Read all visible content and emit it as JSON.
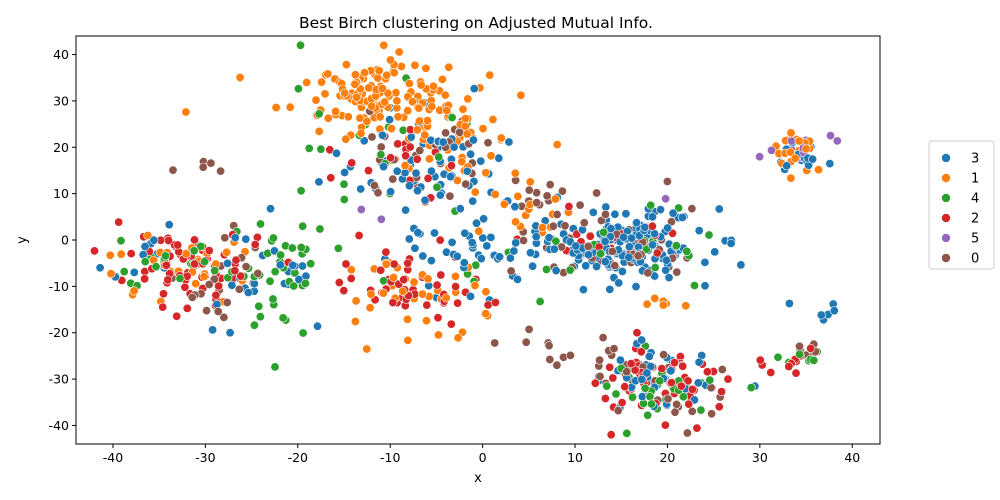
{
  "chart_data": {
    "type": "scatter",
    "title": "Best Birch clustering on Adjusted Mutual Info.",
    "xlabel": "x",
    "ylabel": "y",
    "xlim": [
      -44,
      43
    ],
    "ylim": [
      -44,
      44
    ],
    "xticks": [
      "-40",
      "-30",
      "-20",
      "-10",
      "0",
      "10",
      "20",
      "30",
      "40"
    ],
    "yticks": [
      "-40",
      "-30",
      "-20",
      "-10",
      "0",
      "10",
      "20",
      "30",
      "40"
    ],
    "grid": false,
    "legend_position": "center-right",
    "legend_order": [
      "3",
      "1",
      "4",
      "2",
      "5",
      "0"
    ],
    "series": [
      {
        "name": "3",
        "color": "#1f77b4",
        "clusters": [
          {
            "cx": 15,
            "cy": -1,
            "sx": 4.5,
            "sy": 4,
            "n": 160
          },
          {
            "cx": -6,
            "cy": 16,
            "sx": 5,
            "sy": 6,
            "n": 70
          },
          {
            "cx": -2,
            "cy": -4,
            "sx": 4,
            "sy": 5,
            "n": 40
          },
          {
            "cx": 18,
            "cy": -30,
            "sx": 3.5,
            "sy": 4,
            "n": 40
          },
          {
            "cx": -25,
            "cy": -8,
            "sx": 4,
            "sy": 4,
            "n": 25
          },
          {
            "cx": 34,
            "cy": 18,
            "sx": 1.5,
            "sy": 2,
            "n": 15
          },
          {
            "cx": 36,
            "cy": -15,
            "sx": 1.5,
            "sy": 1,
            "n": 6
          },
          {
            "cx": -35,
            "cy": -4,
            "sx": 3,
            "sy": 4,
            "n": 10
          }
        ]
      },
      {
        "name": "1",
        "color": "#ff7f0e",
        "clusters": [
          {
            "cx": -12,
            "cy": 31,
            "sx": 5,
            "sy": 4,
            "n": 140
          },
          {
            "cx": -3,
            "cy": 22,
            "sx": 4,
            "sy": 5,
            "n": 40
          },
          {
            "cx": -8,
            "cy": -10,
            "sx": 4,
            "sy": 4,
            "n": 40
          },
          {
            "cx": 34,
            "cy": 19,
            "sx": 2,
            "sy": 2,
            "n": 25
          },
          {
            "cx": -33,
            "cy": -6,
            "sx": 4,
            "sy": 4,
            "n": 30
          },
          {
            "cx": 4,
            "cy": 8,
            "sx": 3,
            "sy": 4,
            "n": 20
          },
          {
            "cx": 20,
            "cy": -14,
            "sx": 1.5,
            "sy": 1,
            "n": 6
          }
        ]
      },
      {
        "name": "4",
        "color": "#2ca02c",
        "clusters": [
          {
            "cx": -22,
            "cy": -8,
            "sx": 3,
            "sy": 6,
            "n": 40
          },
          {
            "cx": 20,
            "cy": -32,
            "sx": 4,
            "sy": 4,
            "n": 30
          },
          {
            "cx": -12,
            "cy": 22,
            "sx": 5,
            "sy": 6,
            "n": 20
          },
          {
            "cx": -34,
            "cy": -5,
            "sx": 3,
            "sy": 3,
            "n": 20
          },
          {
            "cx": 18,
            "cy": -3,
            "sx": 3,
            "sy": 4,
            "n": 15
          },
          {
            "cx": 35,
            "cy": -25,
            "sx": 1.5,
            "sy": 1.5,
            "n": 8
          },
          {
            "cx": 5,
            "cy": -5,
            "sx": 5,
            "sy": 5,
            "n": 12
          }
        ]
      },
      {
        "name": "2",
        "color": "#d62728",
        "clusters": [
          {
            "cx": -31,
            "cy": -6,
            "sx": 4,
            "sy": 4,
            "n": 70
          },
          {
            "cx": 19,
            "cy": -31,
            "sx": 4,
            "sy": 4,
            "n": 60
          },
          {
            "cx": -9,
            "cy": -8,
            "sx": 4,
            "sy": 4,
            "n": 30
          },
          {
            "cx": -7,
            "cy": 15,
            "sx": 4,
            "sy": 5,
            "n": 20
          },
          {
            "cx": 14,
            "cy": 0,
            "sx": 4,
            "sy": 3,
            "n": 20
          },
          {
            "cx": 34,
            "cy": -25,
            "sx": 1.5,
            "sy": 1.5,
            "n": 10
          },
          {
            "cx": -4,
            "cy": -13,
            "sx": 3,
            "sy": 2,
            "n": 15
          }
        ]
      },
      {
        "name": "5",
        "color": "#9467bd",
        "clusters": [
          {
            "cx": 34,
            "cy": 20,
            "sx": 2,
            "sy": 1.5,
            "n": 10
          },
          {
            "cx": -11,
            "cy": 5,
            "sx": 1,
            "sy": 1,
            "n": 2
          },
          {
            "cx": 20,
            "cy": 10,
            "sx": 0.5,
            "sy": 0.5,
            "n": 1
          }
        ]
      },
      {
        "name": "0",
        "color": "#8c564b",
        "clusters": [
          {
            "cx": 14,
            "cy": -1,
            "sx": 4.5,
            "sy": 4,
            "n": 50
          },
          {
            "cx": -7,
            "cy": 18,
            "sx": 4,
            "sy": 5,
            "n": 30
          },
          {
            "cx": 20,
            "cy": -31,
            "sx": 4,
            "sy": 4,
            "n": 30
          },
          {
            "cx": -29,
            "cy": -8,
            "sx": 3,
            "sy": 5,
            "n": 20
          },
          {
            "cx": 6,
            "cy": 8,
            "sx": 3,
            "sy": 2,
            "n": 15
          },
          {
            "cx": 35,
            "cy": -24,
            "sx": 1.5,
            "sy": 1,
            "n": 6
          },
          {
            "cx": 8,
            "cy": -25,
            "sx": 2,
            "sy": 2,
            "n": 6
          },
          {
            "cx": -29,
            "cy": 16,
            "sx": 1.5,
            "sy": 0.8,
            "n": 5
          },
          {
            "cx": 4,
            "cy": -22,
            "sx": 1.5,
            "sy": 0.8,
            "n": 4
          }
        ]
      }
    ]
  }
}
